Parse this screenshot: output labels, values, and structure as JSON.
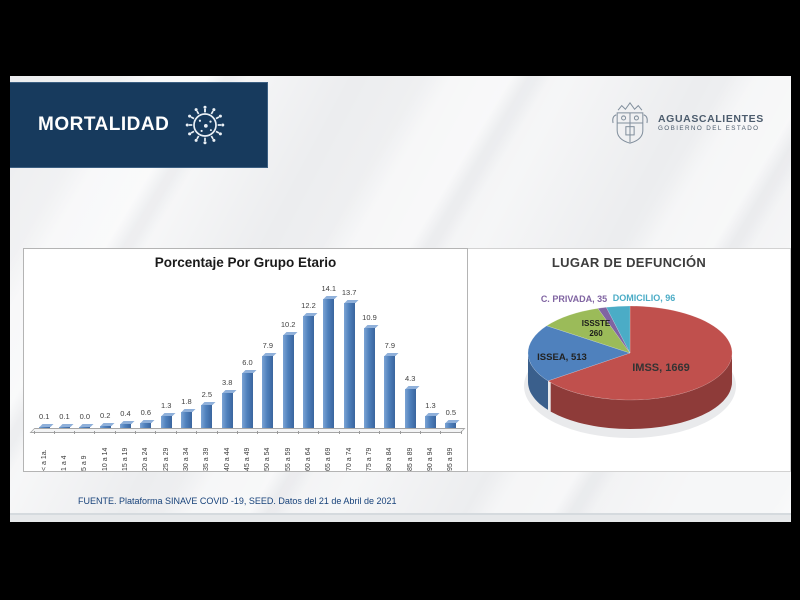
{
  "header": {
    "title": "MORTALIDAD",
    "banner_color": "#173a5d",
    "icons": {
      "banner": "virus-icon",
      "logo": "coat-of-arms-icon"
    },
    "logo": {
      "name": "AGUASCALIENTES",
      "subtitle": "GOBIERNO DEL ESTADO"
    }
  },
  "footer": {
    "source": "FUENTE. Plataforma SINAVE COVID -19, SEED. Datos del 21 de Abril de 2021",
    "text_color": "#17427a"
  },
  "chart_data": [
    {
      "type": "bar",
      "title": "Porcentaje Por Grupo Etario",
      "categories": [
        "< a 1a.",
        "1 a 4",
        "5 a 9",
        "10 a 14",
        "15 a 19",
        "20 a 24",
        "25 a 29",
        "30 a 34",
        "35 a 39",
        "40 a 44",
        "45 a 49",
        "50 a 54",
        "55 a 59",
        "60 a 64",
        "65 a 69",
        "70 a 74",
        "75 a 79",
        "80 a 84",
        "85 a 89",
        "90 a 94",
        "95 a 99"
      ],
      "values": [
        0.1,
        0.1,
        0.0,
        0.2,
        0.4,
        0.6,
        1.3,
        1.8,
        2.5,
        3.8,
        6.0,
        7.9,
        10.2,
        12.2,
        14.1,
        13.7,
        10.9,
        7.9,
        4.3,
        1.3,
        0.5
      ],
      "xlabel": "",
      "ylabel": "",
      "ylim": [
        0,
        14.1
      ],
      "bar_color": "#4f81bd",
      "value_labels": true,
      "grid": false,
      "style": "3d"
    },
    {
      "type": "pie",
      "title": "LUGAR DE DEFUNCIÓN",
      "slices": [
        {
          "label": "IMSS",
          "value": 1669,
          "color": "#c0504d",
          "label_color": "#333333",
          "label_text": "IMSS, 1669"
        },
        {
          "label": "ISSEA",
          "value": 513,
          "color": "#4f81bd",
          "label_color": "#222222",
          "label_text": "ISSEA, 513"
        },
        {
          "label": "ISSSTE",
          "value": 260,
          "color": "#9bbb59",
          "label_color": "#1a1a1a",
          "label_text": "ISSSTE 260"
        },
        {
          "label": "C. PRIVADA",
          "value": 35,
          "color": "#8064a2",
          "label_color": "#8064a2",
          "label_text": "C. PRIVADA, 35"
        },
        {
          "label": "DOMICILIO",
          "value": 96,
          "color": "#4bacc6",
          "label_color": "#4bacc6",
          "label_text": "DOMICILIO, 96"
        }
      ],
      "start_angle_deg": 0,
      "direction": "clockwise",
      "effect": "3d",
      "legend_position": "none"
    }
  ]
}
